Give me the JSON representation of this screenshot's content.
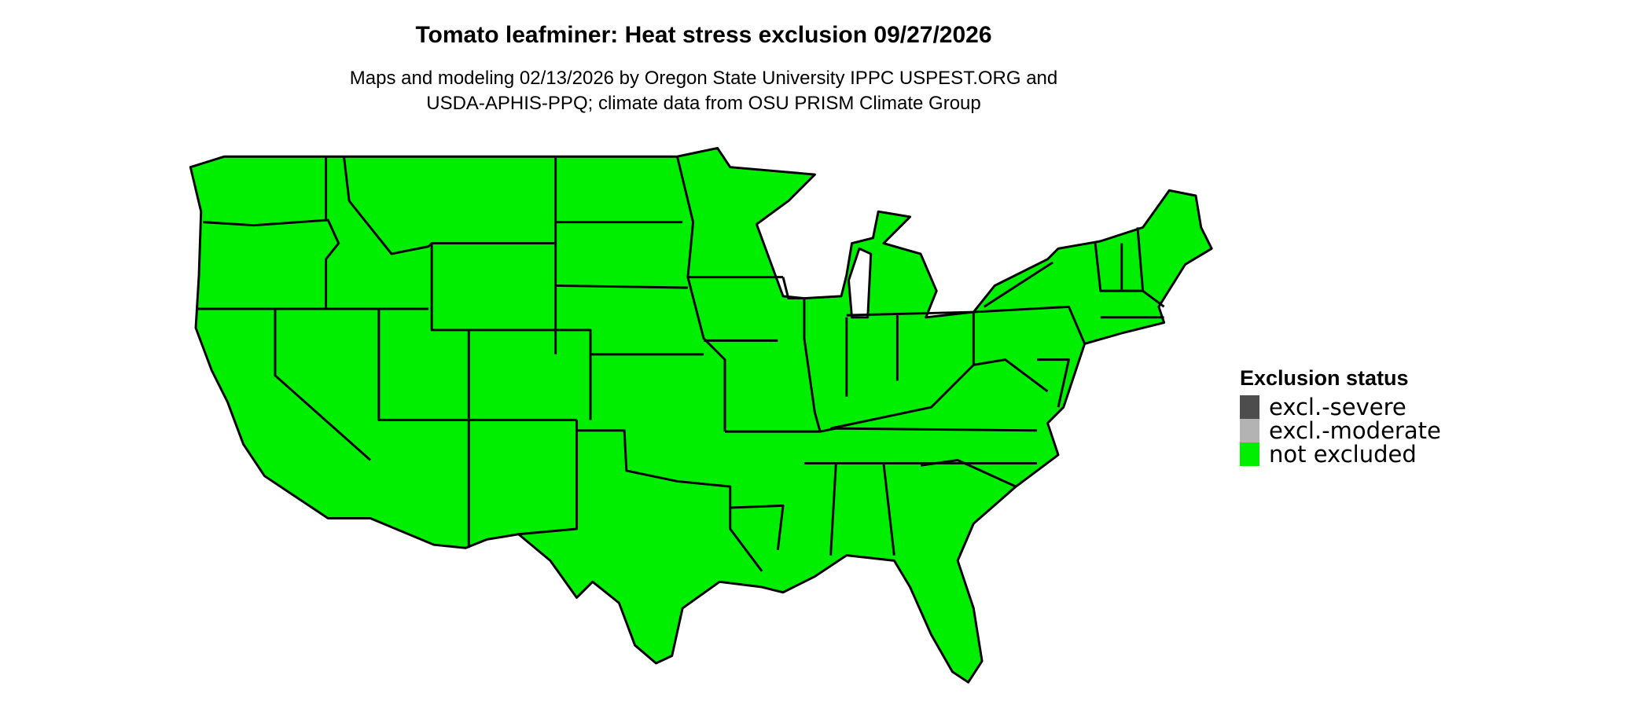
{
  "title": "Tomato leafminer: Heat stress exclusion 09/27/2026",
  "subtitle_lines": [
    "Maps and modeling 02/13/2026 by Oregon State University IPPC USPEST.ORG and",
    "USDA-APHIS-PPQ; climate data from OSU PRISM Climate Group"
  ],
  "legend": {
    "title": "Exclusion status",
    "items": [
      {
        "label": "excl.-severe",
        "color": "#4d4d4d"
      },
      {
        "label": "excl.-moderate",
        "color": "#b3b3b3"
      },
      {
        "label": "not excluded",
        "color": "#00ee00"
      }
    ]
  },
  "map": {
    "region": "Contiguous United States",
    "dominant_status": "not excluded",
    "fill_color": "#00ee00",
    "border_color": "#000000"
  }
}
